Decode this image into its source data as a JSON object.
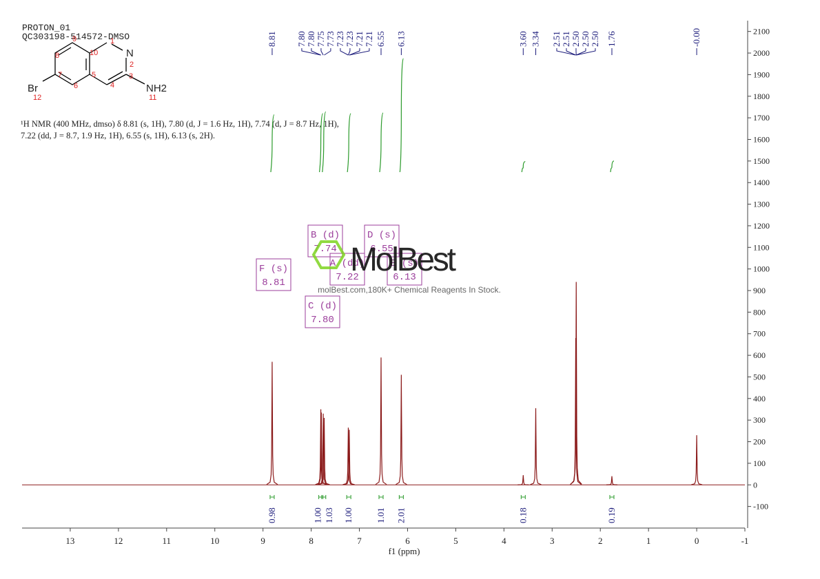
{
  "header": {
    "title": "PROTON_01",
    "sample": "QC303198-514572-DMSO"
  },
  "molecule": {
    "atoms": [
      "N",
      "NH2",
      "Br"
    ],
    "numbers": [
      1,
      2,
      3,
      4,
      5,
      6,
      7,
      8,
      9,
      10,
      11,
      12
    ]
  },
  "nmr_text": [
    "¹H NMR (400 MHz, dmso) δ 8.81 (s, 1H), 7.80 (d, J = 1.6 Hz, 1H), 7.74 (d, J = 8.7 Hz, 1H),",
    "7.22 (dd, J = 8.7, 1.9 Hz, 1H), 6.55 (s, 1H), 6.13 (s, 2H)."
  ],
  "watermark": {
    "brand": "MolBest",
    "tagline": "molBest.com,180K+ Chemical Reagents In Stock."
  },
  "multiplets": [
    {
      "label": "F (s)",
      "shift": "8.81"
    },
    {
      "label": "B (d)",
      "shift": "7.74"
    },
    {
      "label": "A (dd)",
      "shift": "7.22"
    },
    {
      "label": "D (s)",
      "shift": "6.55"
    },
    {
      "label": "E (s)",
      "shift": "6.13"
    },
    {
      "label": "C (d)",
      "shift": "7.80"
    }
  ],
  "chart_data": {
    "type": "nmr",
    "x_label": "f1 (ppm)",
    "color": "#8b1a1a",
    "xlim": [
      14,
      -1
    ],
    "xticks": [
      13,
      12,
      11,
      10,
      9,
      8,
      7,
      6,
      5,
      4,
      3,
      2,
      1,
      0,
      -1
    ],
    "ylim": [
      -200,
      2150
    ],
    "yticks": [
      -100,
      0,
      100,
      200,
      300,
      400,
      500,
      600,
      700,
      800,
      900,
      1000,
      1100,
      1200,
      1300,
      1400,
      1500,
      1600,
      1700,
      1800,
      1900,
      2000,
      2100
    ],
    "x": [
      8.81,
      7.8,
      7.79,
      7.75,
      7.73,
      7.23,
      7.21,
      6.55,
      6.13,
      3.6,
      3.34,
      2.51,
      2.5,
      1.76,
      0.0
    ],
    "values": [
      570,
      350,
      335,
      330,
      310,
      265,
      255,
      590,
      510,
      45,
      355,
      680,
      940,
      40,
      230
    ],
    "peak_labels": [
      {
        "value": 8.81,
        "label": "8.81"
      },
      {
        "value": 7.8,
        "label": "7.80"
      },
      {
        "value": 7.8,
        "label": "7.80"
      },
      {
        "value": 7.75,
        "label": "7.75"
      },
      {
        "value": 7.73,
        "label": "7.73"
      },
      {
        "value": 7.23,
        "label": "7.23"
      },
      {
        "value": 7.23,
        "label": "7.23"
      },
      {
        "value": 7.21,
        "label": "7.21"
      },
      {
        "value": 7.21,
        "label": "7.21"
      },
      {
        "value": 6.55,
        "label": "6.55"
      },
      {
        "value": 6.13,
        "label": "6.13"
      },
      {
        "value": 3.6,
        "label": "3.60"
      },
      {
        "value": 3.34,
        "label": "3.34"
      },
      {
        "value": 2.51,
        "label": "2.51"
      },
      {
        "value": 2.51,
        "label": "2.51"
      },
      {
        "value": 2.5,
        "label": "2.50"
      },
      {
        "value": 2.5,
        "label": "2.50"
      },
      {
        "value": 2.5,
        "label": "2.50"
      },
      {
        "value": 1.76,
        "label": "1.76"
      },
      {
        "value": 0,
        "label": "-0.00"
      }
    ],
    "integrals": {
      "centers": [
        8.81,
        7.8,
        7.74,
        7.22,
        6.55,
        6.13,
        3.6,
        1.76
      ],
      "values": [
        0.98,
        1,
        1.03,
        1,
        1.01,
        2.01,
        0.18,
        0.19
      ],
      "value_labels": [
        "0.98",
        "1.00",
        "1.03",
        "1.00",
        "1.01",
        "2.01",
        "0.18",
        "0.19"
      ]
    }
  }
}
